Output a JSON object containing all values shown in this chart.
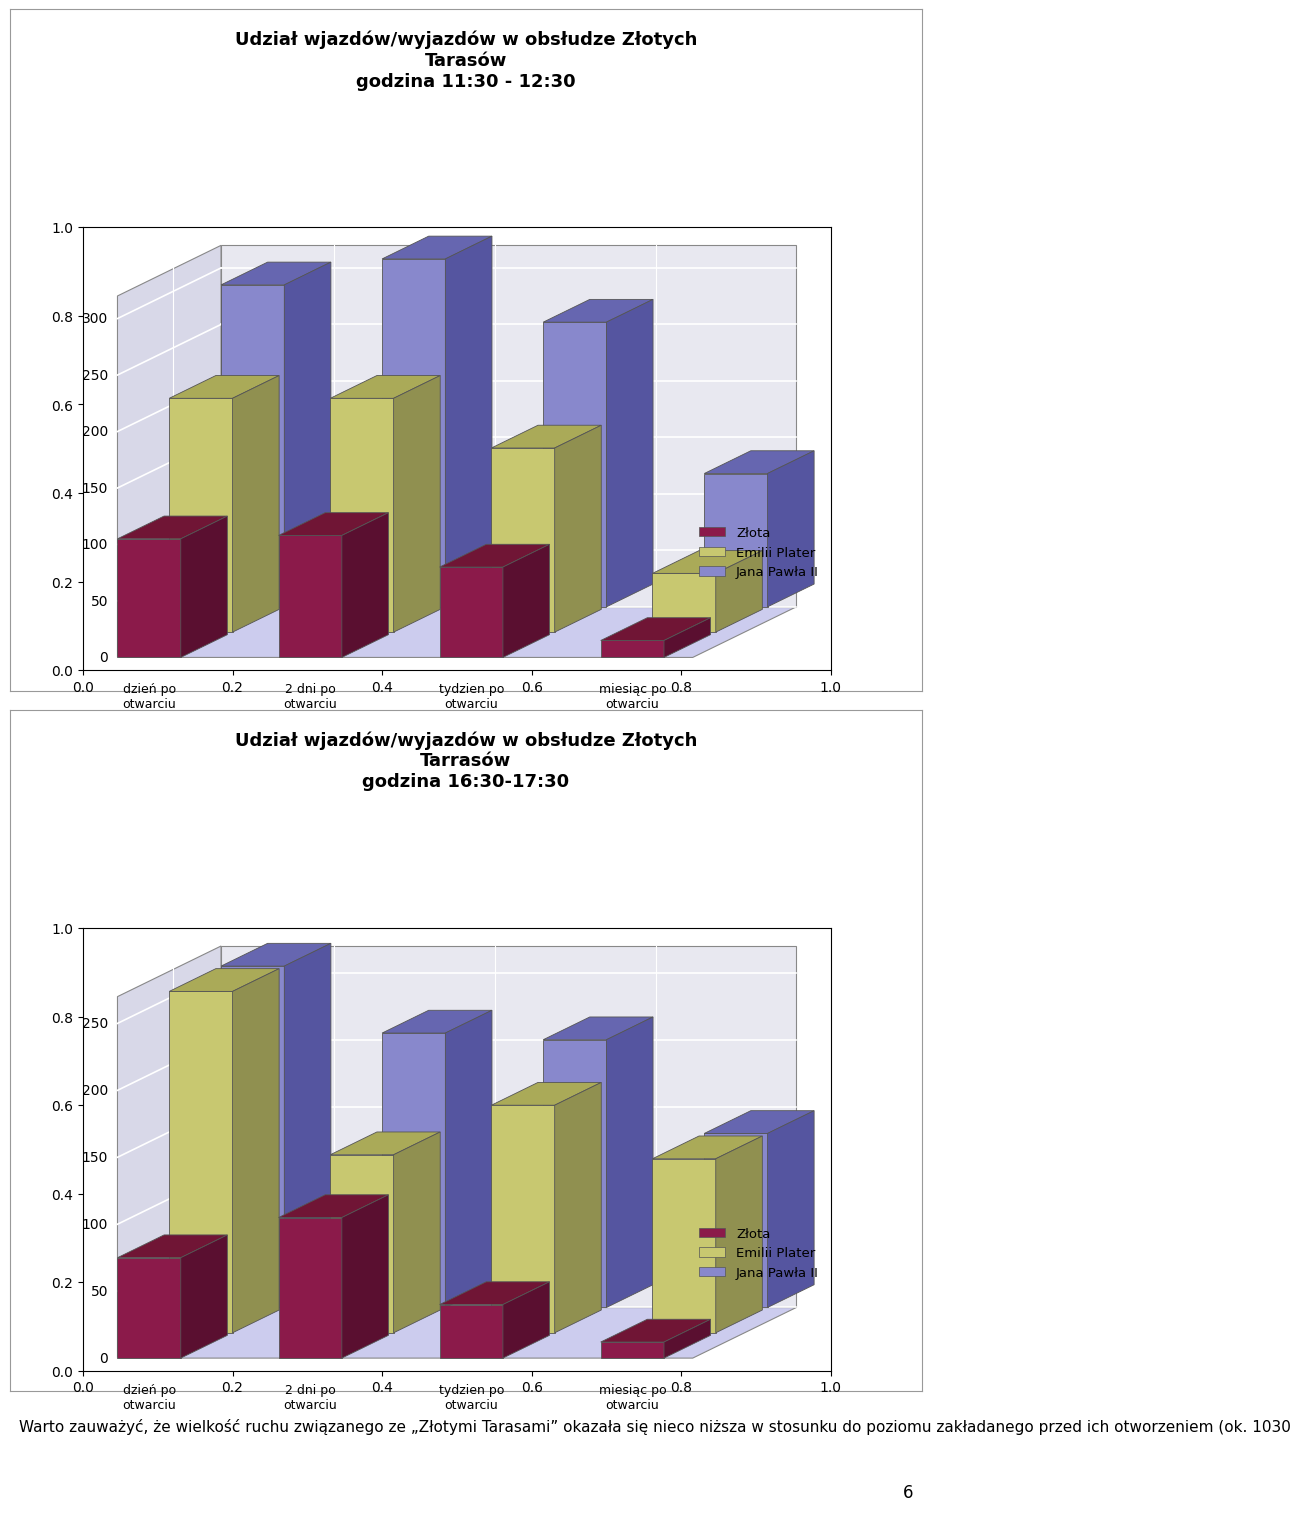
{
  "chart1": {
    "title": "Udział wjazdów/wyjazdów w obsłudze Złotych\nTarasów\ngodzina 11:30 - 12:30",
    "ylim": [
      0,
      320
    ],
    "yticks": [
      0,
      50,
      100,
      150,
      200,
      250,
      300
    ],
    "series": {
      "Złota": [
        105,
        108,
        80,
        15
      ],
      "Emilii Plater": [
        207,
        207,
        163,
        52
      ],
      "Jana Pawła II": [
        285,
        308,
        252,
        118
      ]
    }
  },
  "chart2": {
    "title": "Udział wjazdów/wyjazdów w obsłudze Złotych\nTarrasów\ngodzina 16:30-17:30",
    "ylim": [
      0,
      270
    ],
    "yticks": [
      0,
      50,
      100,
      150,
      200,
      250
    ],
    "series": {
      "Złota": [
        75,
        105,
        40,
        12
      ],
      "Emilii Plater": [
        255,
        133,
        170,
        130
      ],
      "Jana Pawła II": [
        255,
        205,
        200,
        130
      ]
    }
  },
  "categories": [
    "dzień po\notwarciu",
    "2 dni po\notwarciu",
    "tydzien po\notwarciu",
    "miesiąc po\notwarciu"
  ],
  "legend_labels": [
    "Złota",
    "Emilii Plater",
    "Jana Pawła II"
  ],
  "face_colors": {
    "Złota": "#8B1A4A",
    "Emilii Plater": "#C8C870",
    "Jana Pawła II": "#8888CC"
  },
  "right_colors": {
    "Złota": "#5A0F30",
    "Emilii Plater": "#909050",
    "Jana Pawła II": "#5555A0"
  },
  "top_colors": {
    "Złota": "#701535",
    "Emilii Plater": "#AAAA58",
    "Jana Pawła II": "#6666B0"
  },
  "floor_color": "#CCCCEE",
  "wall_color": "#E8E8F0",
  "grid_color": "#ffffff",
  "text_body": "Warto zauważyć, że wielkość ruchu związanego ze „Złotymi Tarasami” okazała się nieco niższa w stosunku do poziomu zakładanego przed ich otworzeniem (ok. 1030",
  "page_number": "6",
  "bg_color": "#ffffff"
}
